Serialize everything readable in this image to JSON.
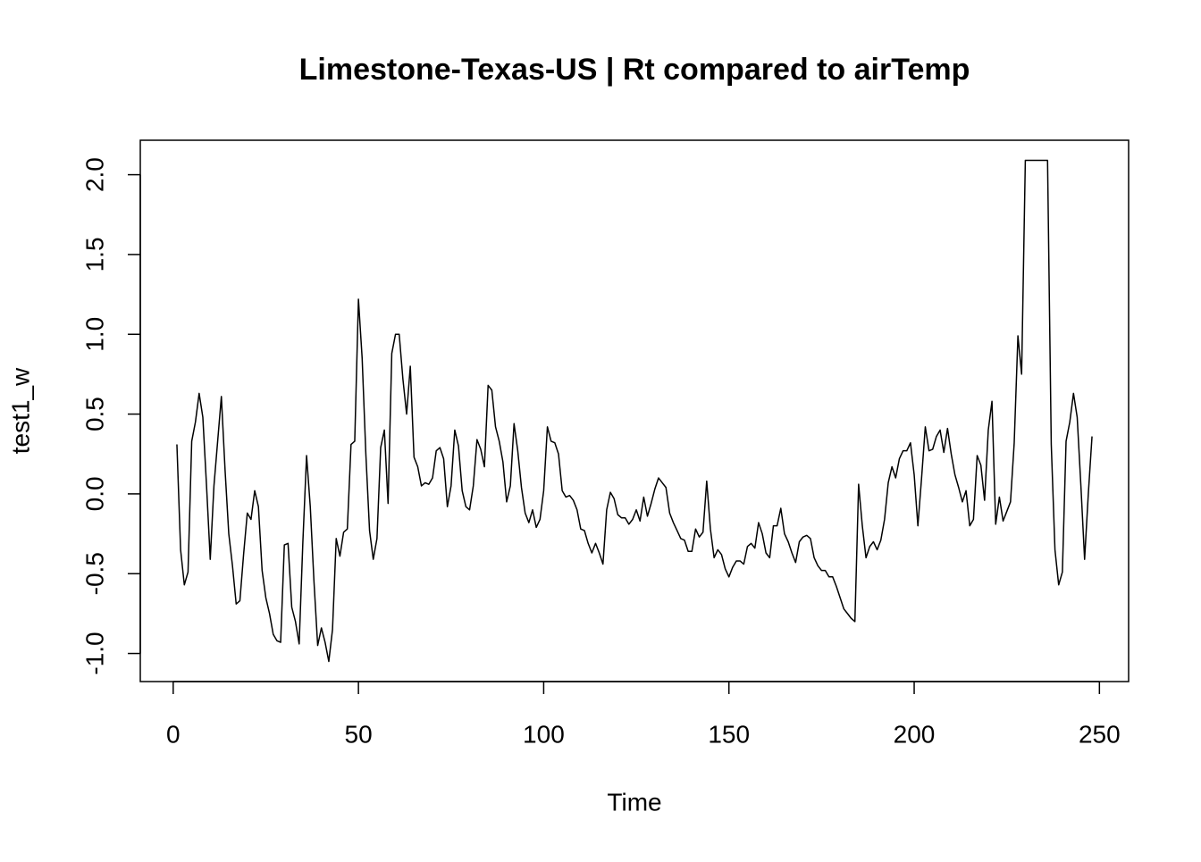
{
  "chart_data": {
    "type": "line",
    "title": "Limestone-Texas-US | Rt compared to airTemp",
    "xlabel": "Time",
    "ylabel": "test1_w",
    "color": "#000000",
    "xlim": [
      -8.88,
      257.88
    ],
    "ylim": [
      -1.176,
      2.216
    ],
    "xticks": [
      0,
      50,
      100,
      150,
      200,
      250
    ],
    "yticks": [
      {
        "value": -1,
        "label": "-1.0"
      },
      -0.5,
      {
        "value": 0,
        "label": "0.0"
      },
      0.5,
      {
        "value": 1,
        "label": "1.0"
      },
      1.5,
      {
        "value": 2,
        "label": "2.0"
      }
    ],
    "x": [
      1,
      2,
      3,
      4,
      5,
      6,
      7,
      8,
      9,
      10,
      11,
      12,
      13,
      14,
      15,
      16,
      17,
      18,
      19,
      20,
      21,
      22,
      23,
      24,
      25,
      26,
      27,
      28,
      29,
      30,
      31,
      32,
      33,
      34,
      35,
      36,
      37,
      38,
      39,
      40,
      41,
      42,
      43,
      44,
      45,
      46,
      47,
      48,
      49,
      50,
      51,
      52,
      53,
      54,
      55,
      56,
      57,
      58,
      59,
      60,
      61,
      62,
      63,
      64,
      65,
      66,
      67,
      68,
      69,
      70,
      71,
      72,
      73,
      74,
      75,
      76,
      77,
      78,
      79,
      80,
      81,
      82,
      83,
      84,
      85,
      86,
      87,
      88,
      89,
      90,
      91,
      92,
      93,
      94,
      95,
      96,
      97,
      98,
      99,
      100,
      101,
      102,
      103,
      104,
      105,
      106,
      107,
      108,
      109,
      110,
      111,
      112,
      113,
      114,
      115,
      116,
      117,
      118,
      119,
      120,
      121,
      122,
      123,
      124,
      125,
      126,
      127,
      128,
      129,
      130,
      131,
      132,
      133,
      134,
      135,
      136,
      137,
      138,
      139,
      140,
      141,
      142,
      143,
      144,
      145,
      146,
      147,
      148,
      149,
      150,
      151,
      152,
      153,
      154,
      155,
      156,
      157,
      158,
      159,
      160,
      161,
      162,
      163,
      164,
      165,
      166,
      167,
      168,
      169,
      170,
      171,
      172,
      173,
      174,
      175,
      176,
      177,
      178,
      179,
      180,
      181,
      182,
      183,
      184,
      185,
      186,
      187,
      188,
      189,
      190,
      191,
      192,
      193,
      194,
      195,
      196,
      197,
      198,
      199,
      200,
      201,
      202,
      203,
      204,
      205,
      206,
      207,
      208,
      209,
      210,
      211,
      212,
      213,
      214,
      215,
      216,
      217,
      218,
      219,
      220,
      221,
      222,
      223,
      224,
      225,
      226,
      227,
      228,
      229,
      230,
      231,
      232,
      233,
      234,
      235,
      236,
      237,
      238,
      239,
      240,
      241,
      242,
      243,
      244,
      245,
      246,
      247,
      248
    ],
    "values": [
      0.31,
      -0.35,
      -0.57,
      -0.49,
      0.33,
      0.45,
      0.63,
      0.48,
      0.05,
      -0.41,
      0.05,
      0.33,
      0.61,
      0.15,
      -0.25,
      -0.45,
      -0.69,
      -0.67,
      -0.38,
      -0.12,
      -0.16,
      0.02,
      -0.08,
      -0.48,
      -0.65,
      -0.75,
      -0.88,
      -0.92,
      -0.93,
      -0.32,
      -0.31,
      -0.71,
      -0.8,
      -0.94,
      -0.3,
      0.24,
      -0.08,
      -0.55,
      -0.95,
      -0.84,
      -0.93,
      -1.05,
      -0.85,
      -0.28,
      -0.39,
      -0.24,
      -0.22,
      0.31,
      0.33,
      1.22,
      0.85,
      0.25,
      -0.23,
      -0.41,
      -0.28,
      0.29,
      0.4,
      -0.06,
      0.88,
      1.0,
      1.0,
      0.72,
      0.5,
      0.8,
      0.23,
      0.17,
      0.05,
      0.07,
      0.06,
      0.1,
      0.27,
      0.29,
      0.22,
      -0.08,
      0.05,
      0.4,
      0.3,
      0.02,
      -0.08,
      -0.1,
      0.05,
      0.34,
      0.28,
      0.17,
      0.68,
      0.65,
      0.42,
      0.33,
      0.2,
      -0.05,
      0.05,
      0.44,
      0.27,
      0.04,
      -0.12,
      -0.18,
      -0.1,
      -0.21,
      -0.16,
      0.02,
      0.42,
      0.33,
      0.32,
      0.25,
      0.02,
      -0.02,
      -0.01,
      -0.04,
      -0.1,
      -0.22,
      -0.23,
      -0.31,
      -0.37,
      -0.31,
      -0.37,
      -0.44,
      -0.1,
      0.01,
      -0.03,
      -0.13,
      -0.15,
      -0.15,
      -0.19,
      -0.16,
      -0.1,
      -0.17,
      -0.02,
      -0.14,
      -0.06,
      0.03,
      0.1,
      0.07,
      0.04,
      -0.12,
      -0.18,
      -0.23,
      -0.28,
      -0.29,
      -0.36,
      -0.36,
      -0.22,
      -0.27,
      -0.24,
      0.08,
      -0.22,
      -0.4,
      -0.35,
      -0.38,
      -0.47,
      -0.52,
      -0.46,
      -0.42,
      -0.42,
      -0.44,
      -0.33,
      -0.31,
      -0.34,
      -0.18,
      -0.25,
      -0.37,
      -0.4,
      -0.2,
      -0.2,
      -0.09,
      -0.25,
      -0.3,
      -0.37,
      -0.43,
      -0.3,
      -0.27,
      -0.26,
      -0.28,
      -0.4,
      -0.45,
      -0.48,
      -0.48,
      -0.52,
      -0.52,
      -0.58,
      -0.65,
      -0.72,
      -0.75,
      -0.78,
      -0.8,
      0.06,
      -0.2,
      -0.4,
      -0.33,
      -0.3,
      -0.35,
      -0.29,
      -0.16,
      0.07,
      0.17,
      0.1,
      0.22,
      0.27,
      0.27,
      0.32,
      0.12,
      -0.2,
      0.1,
      0.42,
      0.27,
      0.28,
      0.36,
      0.4,
      0.26,
      0.41,
      0.25,
      0.12,
      0.04,
      -0.05,
      0.02,
      -0.2,
      -0.16,
      0.24,
      0.18,
      -0.04,
      0.4,
      0.58,
      -0.19,
      -0.02,
      -0.17,
      -0.11,
      -0.05,
      0.32,
      0.99,
      0.75,
      2.09,
      2.09,
      2.09,
      2.09,
      2.09,
      2.09,
      2.09,
      0.31,
      -0.35,
      -0.57,
      -0.49,
      0.33,
      0.45,
      0.63,
      0.48,
      0.05,
      -0.41,
      0.0,
      0.36
    ]
  }
}
